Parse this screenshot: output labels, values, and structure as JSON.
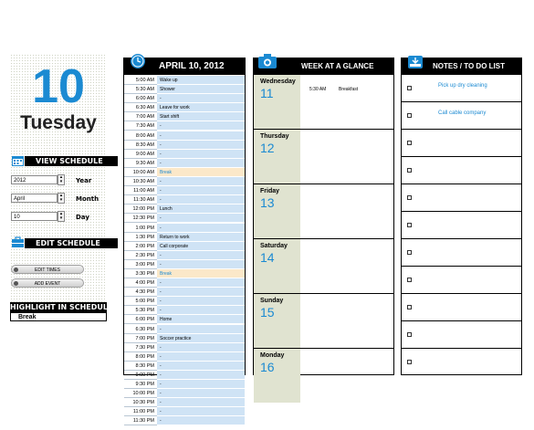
{
  "left_panel": {
    "date_number": "10",
    "weekday": "Tuesday",
    "view_schedule_title": "VIEW SCHEDULE",
    "year_value": "2012",
    "year_label": "Year",
    "month_value": "April",
    "month_label": "Month",
    "day_value": "10",
    "day_label": "Day",
    "edit_schedule_title": "EDIT SCHEDULE",
    "edit_times_label": "EDIT TIMES",
    "add_event_label": "ADD EVENT",
    "highlight_title": "HIGHLIGHT IN SCHEDULE",
    "highlight_value": "Break"
  },
  "schedule": {
    "title": "APRIL 10, 2012",
    "rows": [
      {
        "time": "5:00 AM",
        "event": "Wake up"
      },
      {
        "time": "5:30 AM",
        "event": "Shower"
      },
      {
        "time": "6:00 AM",
        "event": "-"
      },
      {
        "time": "6:30 AM",
        "event": "Leave for work"
      },
      {
        "time": "7:00 AM",
        "event": "Start shift"
      },
      {
        "time": "7:30 AM",
        "event": "-"
      },
      {
        "time": "8:00 AM",
        "event": "-"
      },
      {
        "time": "8:30 AM",
        "event": "-"
      },
      {
        "time": "9:00 AM",
        "event": "-"
      },
      {
        "time": "9:30 AM",
        "event": "-"
      },
      {
        "time": "10:00 AM",
        "event": "Break"
      },
      {
        "time": "10:30 AM",
        "event": "-"
      },
      {
        "time": "11:00 AM",
        "event": "-"
      },
      {
        "time": "11:30 AM",
        "event": "-"
      },
      {
        "time": "12:00 PM",
        "event": "Lunch"
      },
      {
        "time": "12:30 PM",
        "event": "-"
      },
      {
        "time": "1:00 PM",
        "event": "-"
      },
      {
        "time": "1:30 PM",
        "event": "Return to work"
      },
      {
        "time": "2:00 PM",
        "event": "Call corporate"
      },
      {
        "time": "2:30 PM",
        "event": "-"
      },
      {
        "time": "3:00 PM",
        "event": "-"
      },
      {
        "time": "3:30 PM",
        "event": "Break"
      },
      {
        "time": "4:00 PM",
        "event": "-"
      },
      {
        "time": "4:30 PM",
        "event": "-"
      },
      {
        "time": "5:00 PM",
        "event": "-"
      },
      {
        "time": "5:30 PM",
        "event": "-"
      },
      {
        "time": "6:00 PM",
        "event": "Home"
      },
      {
        "time": "6:30 PM",
        "event": "-"
      },
      {
        "time": "7:00 PM",
        "event": "Soccer practice"
      },
      {
        "time": "7:30 PM",
        "event": "-"
      },
      {
        "time": "8:00 PM",
        "event": "-"
      },
      {
        "time": "8:30 PM",
        "event": "-"
      },
      {
        "time": "9:00 PM",
        "event": "-"
      },
      {
        "time": "9:30 PM",
        "event": "-"
      },
      {
        "time": "10:00 PM",
        "event": "-"
      },
      {
        "time": "10:30 PM",
        "event": "-"
      },
      {
        "time": "11:00 PM",
        "event": "-"
      },
      {
        "time": "11:30 PM",
        "event": "-"
      }
    ]
  },
  "week": {
    "title": "WEEK AT A GLANCE",
    "days": [
      {
        "name": "Wednesday",
        "num": "11",
        "time": "5:30 AM",
        "event": "Breakfast"
      },
      {
        "name": "Thursday",
        "num": "12",
        "time": "",
        "event": ""
      },
      {
        "name": "Friday",
        "num": "13",
        "time": "",
        "event": ""
      },
      {
        "name": "Saturday",
        "num": "14",
        "time": "",
        "event": ""
      },
      {
        "name": "Sunday",
        "num": "15",
        "time": "",
        "event": ""
      },
      {
        "name": "Monday",
        "num": "16",
        "time": "",
        "event": ""
      }
    ]
  },
  "notes": {
    "title": "NOTES / TO DO LIST",
    "items": [
      "Pick up dry cleaning",
      "Call cable company",
      "",
      "",
      "",
      "",
      "",
      "",
      "",
      "",
      ""
    ]
  },
  "colors": {
    "accent_blue": "#1b8ad2",
    "schedule_cell": "#cfe3f5",
    "highlight_cell": "#fbe8c9",
    "week_side": "#e0e3d0"
  },
  "icons": {
    "schedule_header": "clock-icon",
    "week_header": "camera-icon",
    "notes_header": "inbox-icon",
    "view_schedule": "calendar-icon",
    "edit_schedule": "toolbox-icon"
  }
}
